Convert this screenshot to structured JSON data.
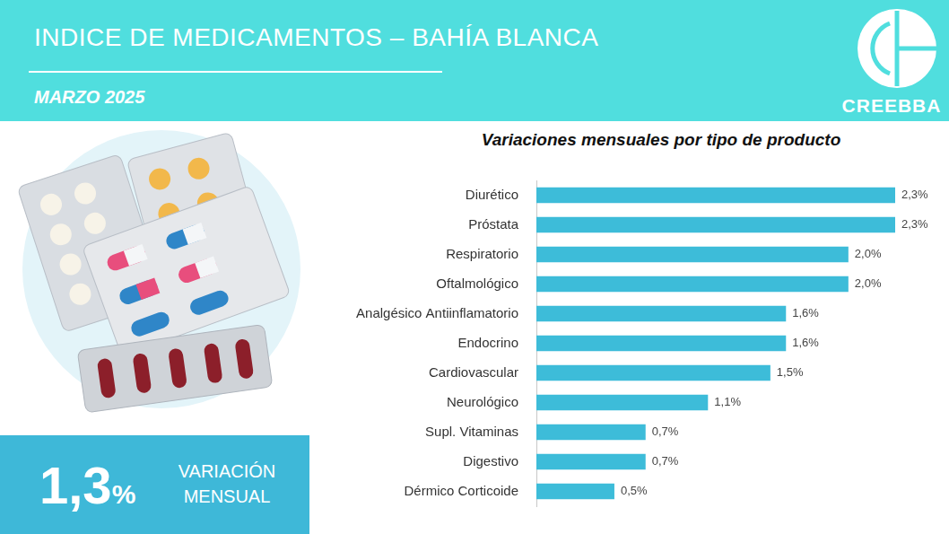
{
  "header": {
    "title": "INDICE DE MEDICAMENTOS – BAHÍA BLANCA",
    "subtitle": "MARZO 2025",
    "logo": "CREEBBA"
  },
  "summary": {
    "value": "1,3",
    "unit": "%",
    "label": "VARIACIÓN MENSUAL"
  },
  "chart_data": {
    "type": "bar",
    "orientation": "horizontal",
    "title": "Variaciones mensuales por tipo de producto",
    "categories": [
      "Diurético",
      "Próstata",
      "Respiratorio",
      "Oftalmológico",
      "Analgésico Antiinflamatorio",
      "Endocrino",
      "Cardiovascular",
      "Neurológico",
      "Supl. Vitaminas",
      "Digestivo",
      "Dérmico Corticoide"
    ],
    "values": [
      2.3,
      2.3,
      2.0,
      2.0,
      1.6,
      1.6,
      1.5,
      1.1,
      0.7,
      0.7,
      0.5
    ],
    "value_labels": [
      "2,3%",
      "2,3%",
      "2,0%",
      "2,0%",
      "1,6%",
      "1,6%",
      "1,5%",
      "1,1%",
      "0,7%",
      "0,7%",
      "0,5%"
    ],
    "color": "#3dbcd9",
    "xlim": [
      0,
      2.3
    ],
    "grid": false,
    "data_labels": true,
    "tick_labels": "y"
  }
}
